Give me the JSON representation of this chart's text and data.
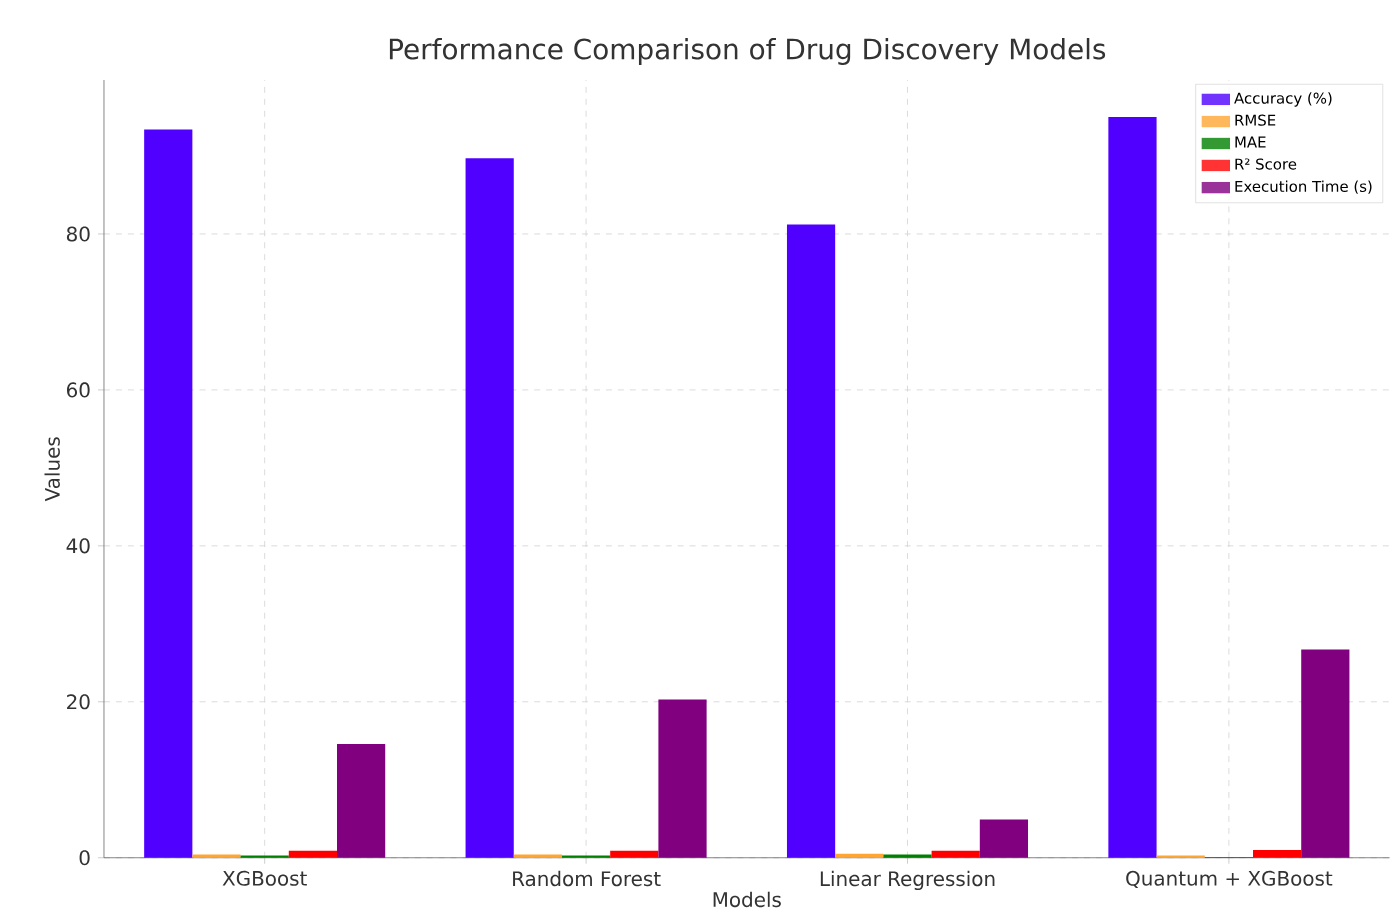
{
  "chart_data": {
    "type": "bar",
    "title": "Performance Comparison of Drug Discovery Models",
    "xlabel": "Models",
    "ylabel": "Values",
    "categories": [
      "XGBoost",
      "Random Forest",
      "Linear Regression",
      "Quantum + XGBoost"
    ],
    "series": [
      {
        "name": "Accuracy (%)",
        "color": "#5000ff",
        "values": [
          93.4,
          89.7,
          81.2,
          95.0
        ]
      },
      {
        "name": "RMSE",
        "color": "#ffa533",
        "values": [
          0.4,
          0.4,
          0.5,
          0.3
        ]
      },
      {
        "name": "MAE",
        "color": "#008000",
        "values": [
          0.3,
          0.3,
          0.4,
          0.1
        ]
      },
      {
        "name": "R² Score",
        "color": "#ff0000",
        "values": [
          0.9,
          0.9,
          0.9,
          1.0
        ]
      },
      {
        "name": "Execution Time (s)",
        "color": "#800080",
        "values": [
          14.6,
          20.3,
          4.9,
          26.7
        ]
      }
    ],
    "ylim": [
      0,
      99.75
    ],
    "yticks": [
      0,
      20,
      40,
      60,
      80
    ],
    "grid": true,
    "legend": "top right"
  }
}
